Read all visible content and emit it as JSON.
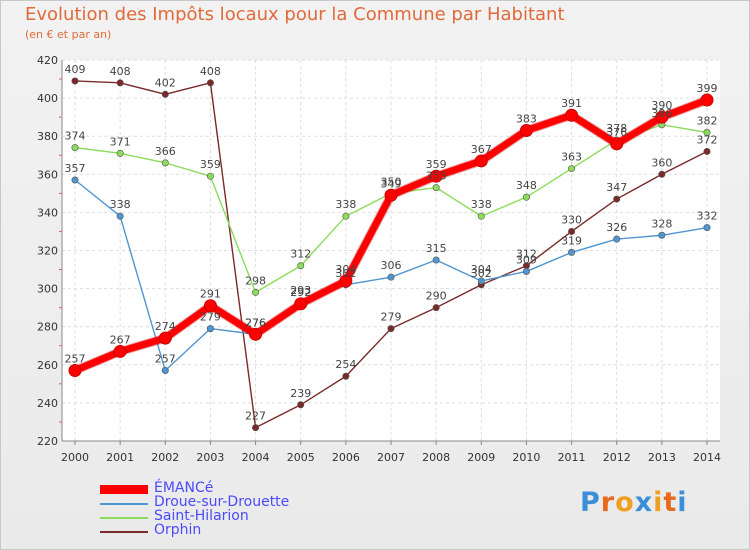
{
  "chart_data": {
    "type": "line",
    "title": "Evolution des Impôts locaux pour la Commune par Habitant",
    "subtitle": "(en € et par an)",
    "x": [
      "2000",
      "2001",
      "2002",
      "2003",
      "2004",
      "2005",
      "2006",
      "2007",
      "2008",
      "2009",
      "2010",
      "2011",
      "2012",
      "2013",
      "2014"
    ],
    "yticks": [
      220,
      240,
      260,
      280,
      300,
      320,
      340,
      360,
      380,
      400,
      420
    ],
    "ylim": [
      220,
      420
    ],
    "grid": true,
    "legend_position": "bottom-left",
    "series": [
      {
        "name": "ÉMANCé",
        "color": "#ff0000",
        "values": [
          257,
          267,
          274,
          291,
          276,
          292,
          304,
          349,
          359,
          367,
          383,
          391,
          376,
          390,
          399
        ]
      },
      {
        "name": "Droue-sur-Drouette",
        "color": "#4f95d0",
        "values": [
          357,
          338,
          257,
          279,
          276,
          293,
          302,
          306,
          315,
          304,
          309,
          319,
          326,
          328,
          332
        ]
      },
      {
        "name": "Saint-Hilarion",
        "color": "#8cdc5a",
        "values": [
          374,
          371,
          366,
          359,
          298,
          312,
          338,
          350,
          353,
          338,
          348,
          363,
          378,
          386,
          382
        ]
      },
      {
        "name": "Orphin",
        "color": "#7a2a2a",
        "values": [
          409,
          408,
          402,
          408,
          227,
          239,
          254,
          279,
          290,
          302,
          312,
          330,
          347,
          360,
          372
        ]
      }
    ]
  },
  "logo": {
    "letters": [
      "P",
      "r",
      "o",
      "x",
      "i",
      "t",
      "i"
    ],
    "colors": [
      "#3a8fd8",
      "#e86a1a",
      "#f0a020",
      "#3a8fd8",
      "#f0a020",
      "#e86a1a",
      "#3a8fd8"
    ]
  }
}
